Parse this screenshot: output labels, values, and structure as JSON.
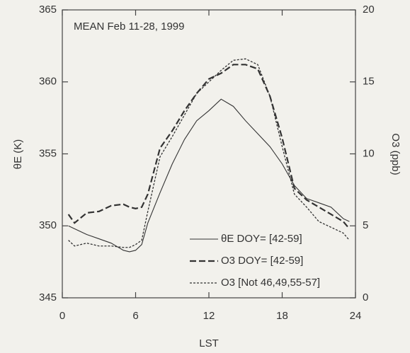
{
  "chart_data": {
    "type": "line",
    "annotation": "MEAN Feb 11-28, 1999",
    "xlabel": "LST",
    "ylabel": "θE (K)",
    "y2label": "O3 (ppb)",
    "x": [
      0.5,
      1,
      2,
      3,
      4,
      5,
      5.5,
      6,
      6.5,
      7,
      8,
      9,
      10,
      11,
      12,
      13,
      14,
      15,
      16,
      17,
      18,
      19,
      20,
      21,
      22,
      23,
      23.5
    ],
    "xlim": [
      0,
      24
    ],
    "xticks": [
      0,
      6,
      12,
      18,
      24
    ],
    "ylim": [
      345,
      365
    ],
    "yticks": [
      345,
      350,
      355,
      360,
      365
    ],
    "y2lim": [
      0,
      20
    ],
    "y2ticks": [
      0,
      5,
      10,
      15,
      20
    ],
    "legend": "lower right",
    "series": [
      {
        "name": "θE DOY= [42-59]",
        "color": "#333333",
        "linestyle": "solid",
        "values": [
          350.0,
          349.8,
          349.4,
          349.1,
          348.8,
          348.3,
          348.2,
          348.3,
          348.7,
          350.2,
          352.3,
          354.3,
          356.0,
          357.3,
          358.0,
          358.8,
          358.3,
          357.3,
          356.4,
          355.5,
          354.3,
          352.8,
          351.9,
          351.6,
          351.3,
          350.5,
          350.3
        ]
      },
      {
        "name": "O3 DOY= [42-59]",
        "color": "#333333",
        "linestyle": "dashed",
        "axis": "y2",
        "values": [
          5.8,
          5.2,
          5.9,
          6.0,
          6.4,
          6.5,
          6.3,
          6.2,
          6.3,
          7.2,
          10.4,
          11.6,
          13.0,
          14.2,
          15.2,
          15.6,
          16.2,
          16.2,
          15.9,
          14.0,
          11.1,
          7.6,
          6.8,
          6.3,
          5.8,
          5.3,
          4.8
        ]
      },
      {
        "name": "O3 [Not 46,49,55-57]",
        "color": "#333333",
        "linestyle": "dotted",
        "axis": "y2",
        "values": [
          4.0,
          3.6,
          3.8,
          3.6,
          3.6,
          3.5,
          3.5,
          3.7,
          4.0,
          6.0,
          9.8,
          11.2,
          12.7,
          14.2,
          15.0,
          15.8,
          16.5,
          16.6,
          16.2,
          14.0,
          10.5,
          7.2,
          6.3,
          5.3,
          4.9,
          4.5,
          4.0
        ]
      }
    ]
  }
}
